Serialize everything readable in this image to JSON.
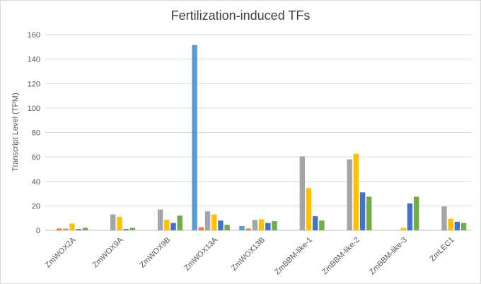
{
  "chart_data": {
    "type": "bar",
    "title": "Fertilization-induced TFs",
    "xlabel": "",
    "ylabel": "Transcript Level (TPM)",
    "ylim": [
      0,
      160
    ],
    "yticks": [
      0,
      20,
      40,
      60,
      80,
      100,
      120,
      140,
      160
    ],
    "grid": true,
    "legend": "none",
    "categories": [
      "ZmWOX2A",
      "ZmWOX9A",
      "ZmWOX9B",
      "ZmWOX13A",
      "ZmWOX13B",
      "ZmBBM-like-1",
      "ZmBBM-like-2",
      "ZmBBM-like-3",
      "ZmLEC1"
    ],
    "series": [
      {
        "color": "#5b9bd5",
        "values": [
          0,
          0,
          0,
          151.5,
          3.5,
          0,
          0,
          0,
          0
        ]
      },
      {
        "color": "#ed7d31",
        "values": [
          1.5,
          0,
          0,
          2.5,
          1.5,
          0,
          0,
          0,
          0
        ]
      },
      {
        "color": "#a5a5a5",
        "values": [
          1.5,
          13,
          17,
          15.5,
          8.5,
          60.5,
          58,
          0,
          19.5
        ]
      },
      {
        "color": "#ffc000",
        "values": [
          5.5,
          11,
          8.5,
          13,
          9,
          34.5,
          62.5,
          2,
          9.5
        ]
      },
      {
        "color": "#4472c4",
        "values": [
          1,
          1,
          6,
          8,
          6,
          11.5,
          31,
          22,
          7
        ]
      },
      {
        "color": "#70ad47",
        "values": [
          2,
          2,
          12,
          4.5,
          7.5,
          8,
          27.5,
          27.5,
          6
        ]
      }
    ]
  }
}
